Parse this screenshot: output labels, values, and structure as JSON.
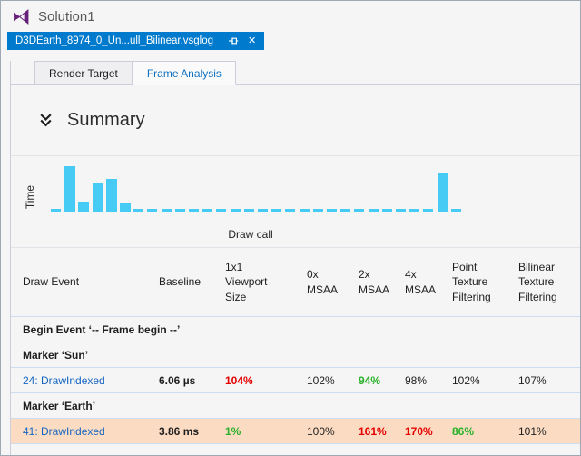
{
  "window": {
    "title": "Solution1"
  },
  "doc_tab": {
    "label": "D3DEarth_8974_0_Un...ull_Bilinear.vsglog",
    "pin_icon": "pin-icon",
    "close_icon": "close-icon"
  },
  "subtabs": {
    "render_target": "Render Target",
    "frame_analysis": "Frame Analysis",
    "active": "Frame Analysis"
  },
  "summary": {
    "title": "Summary",
    "collapse_icon": "double-chevron-down-icon"
  },
  "chart_data": {
    "type": "bar",
    "title": "",
    "xlabel": "Draw call",
    "ylabel": "Time",
    "bar_color": "#45CBF4",
    "axis_numeric_labels": false,
    "values_note": "relative draw-call GPU time, 0-100 scale; near-zero calls render as dashes",
    "values": [
      6,
      100,
      22,
      62,
      72,
      20,
      6,
      6,
      6,
      6,
      6,
      6,
      6,
      6,
      6,
      6,
      6,
      6,
      6,
      6,
      6,
      6,
      6,
      6,
      6,
      6,
      6,
      6,
      84,
      6
    ]
  },
  "table": {
    "columns": [
      "Draw Event",
      "Baseline",
      "1x1\nViewport\nSize",
      "0x\nMSAA",
      "2x\nMSAA",
      "4x\nMSAA",
      "Point\nTexture\nFiltering",
      "Bilinear\nTexture\nFiltering"
    ],
    "rows": [
      {
        "type": "group",
        "label": "Begin Event ‘-- Frame begin --’"
      },
      {
        "type": "group",
        "label": "Marker ‘Sun’"
      },
      {
        "type": "data",
        "event": "24: DrawIndexed",
        "baseline": "6.06 µs",
        "highlight": false,
        "cells": [
          {
            "v": "104%",
            "c": "red"
          },
          {
            "v": "102%",
            "c": ""
          },
          {
            "v": "94%",
            "c": "green"
          },
          {
            "v": "98%",
            "c": ""
          },
          {
            "v": "102%",
            "c": ""
          },
          {
            "v": "107%",
            "c": ""
          }
        ]
      },
      {
        "type": "group",
        "label": "Marker ‘Earth’"
      },
      {
        "type": "data",
        "event": "41: DrawIndexed",
        "baseline": "3.86 ms",
        "highlight": true,
        "cells": [
          {
            "v": "1%",
            "c": "green"
          },
          {
            "v": "100%",
            "c": ""
          },
          {
            "v": "161%",
            "c": "red"
          },
          {
            "v": "170%",
            "c": "red"
          },
          {
            "v": "86%",
            "c": "green"
          },
          {
            "v": "101%",
            "c": ""
          }
        ]
      }
    ]
  },
  "colors": {
    "accent_tab_blue": "#007ACC",
    "link_blue": "#1565C0",
    "active_subtab_blue": "#0E70C0",
    "bad_red": "#E40000",
    "good_green": "#29B129",
    "bar_cyan": "#45CBF4",
    "highlight_peach": "#FBDCC2",
    "row_separator": "#CFDDF0",
    "panel_border": "#CCCEDB",
    "vs_logo_purple": "#68217A"
  }
}
